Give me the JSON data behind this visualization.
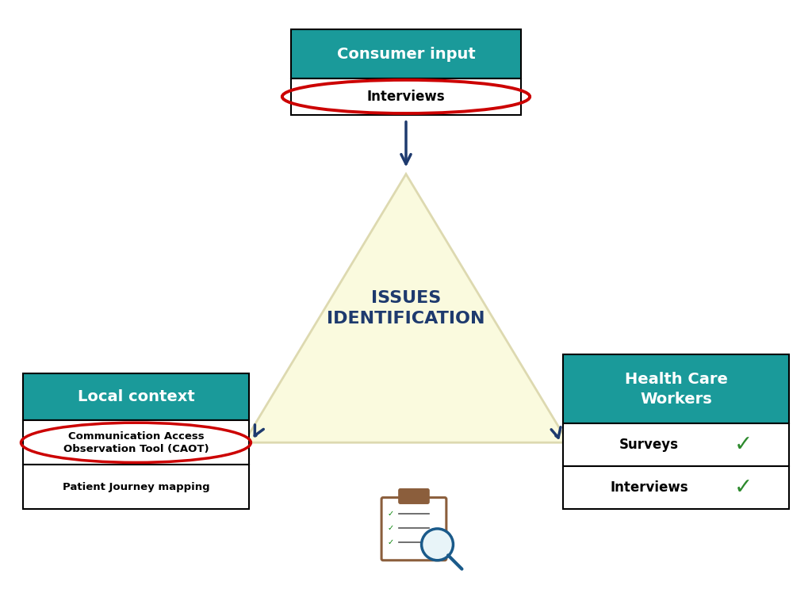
{
  "bg_color": "#ffffff",
  "teal_color": "#1a9a9a",
  "dark_blue": "#1e3a6e",
  "red_circle": "#cc0000",
  "green_check": "#2d8a2d",
  "triangle_fill": "#fafade",
  "triangle_edge": "#ddd9b0",
  "center_text": "ISSUES\nIDENTIFICATION",
  "center_text_color": "#1e3a6e",
  "box_top_title": "Consumer input",
  "box_top_items": [
    "Interviews"
  ],
  "box_left_title": "Local context",
  "box_left_items": [
    "Communication Access\nObservation Tool (CAOT)",
    "Patient Journey mapping"
  ],
  "box_right_title": "Health Care\nWorkers",
  "box_right_items": [
    "Surveys",
    "Interviews"
  ],
  "figw": 10.24,
  "figh": 7.48,
  "dpi": 100
}
